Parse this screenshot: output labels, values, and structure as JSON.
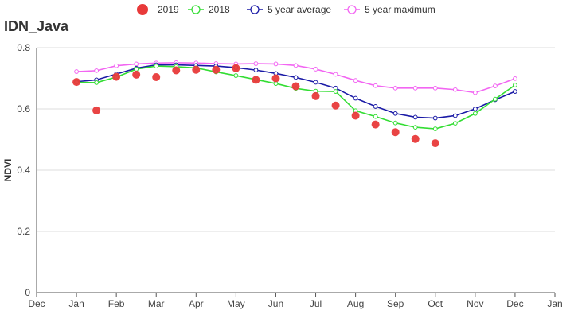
{
  "chart_data": {
    "type": "line",
    "title": "IDN_Java",
    "xlabel": "",
    "ylabel": "NDVI",
    "ylim": [
      0,
      0.8
    ],
    "yticks": [
      "0",
      "0.2",
      "0.4",
      "0.6",
      "0.8"
    ],
    "xticks": [
      "Dec",
      "Jan",
      "Feb",
      "Mar",
      "Apr",
      "May",
      "Jun",
      "Jul",
      "Aug",
      "Sep",
      "Oct",
      "Nov",
      "Dec",
      "Jan"
    ],
    "x": [
      "Jan 01",
      "Jan 16",
      "Feb 01",
      "Feb 16",
      "Mar 01",
      "Mar 16",
      "Apr 01",
      "Apr 16",
      "May 01",
      "May 16",
      "Jun 01",
      "Jun 16",
      "Jul 01",
      "Jul 16",
      "Aug 01",
      "Aug 16",
      "Sep 01",
      "Sep 16",
      "Oct 01",
      "Oct 16",
      "Nov 01",
      "Nov 16",
      "Dec 01"
    ],
    "grid": true,
    "legend_position": "top-center",
    "series": [
      {
        "name": "2019",
        "style": "dots",
        "color": "#e83a3a",
        "values": [
          0.688,
          0.595,
          0.705,
          0.712,
          0.704,
          0.726,
          0.728,
          0.728,
          0.733,
          0.695,
          0.7,
          0.674,
          0.642,
          0.611,
          0.578,
          0.549,
          0.524,
          0.502,
          0.488,
          null,
          null,
          null,
          null
        ]
      },
      {
        "name": "2018",
        "style": "line",
        "color": "#33dd33",
        "values": [
          0.687,
          0.686,
          0.704,
          0.73,
          0.74,
          0.738,
          0.734,
          0.721,
          0.709,
          0.696,
          0.683,
          0.667,
          0.658,
          0.657,
          0.594,
          0.575,
          0.554,
          0.54,
          0.535,
          0.553,
          0.585,
          0.632,
          0.678
        ]
      },
      {
        "name": "5 year average",
        "style": "line",
        "color": "#1a1aa6",
        "values": [
          0.689,
          0.695,
          0.714,
          0.733,
          0.744,
          0.744,
          0.742,
          0.74,
          0.735,
          0.727,
          0.716,
          0.703,
          0.687,
          0.668,
          0.635,
          0.608,
          0.585,
          0.573,
          0.57,
          0.578,
          0.6,
          0.63,
          0.657
        ]
      },
      {
        "name": "5 year maximum",
        "style": "line",
        "color": "#f266f2",
        "values": [
          0.722,
          0.725,
          0.741,
          0.747,
          0.75,
          0.751,
          0.75,
          0.748,
          0.747,
          0.748,
          0.747,
          0.742,
          0.73,
          0.713,
          0.693,
          0.676,
          0.668,
          0.668,
          0.668,
          0.663,
          0.653,
          0.675,
          0.699
        ]
      }
    ]
  }
}
